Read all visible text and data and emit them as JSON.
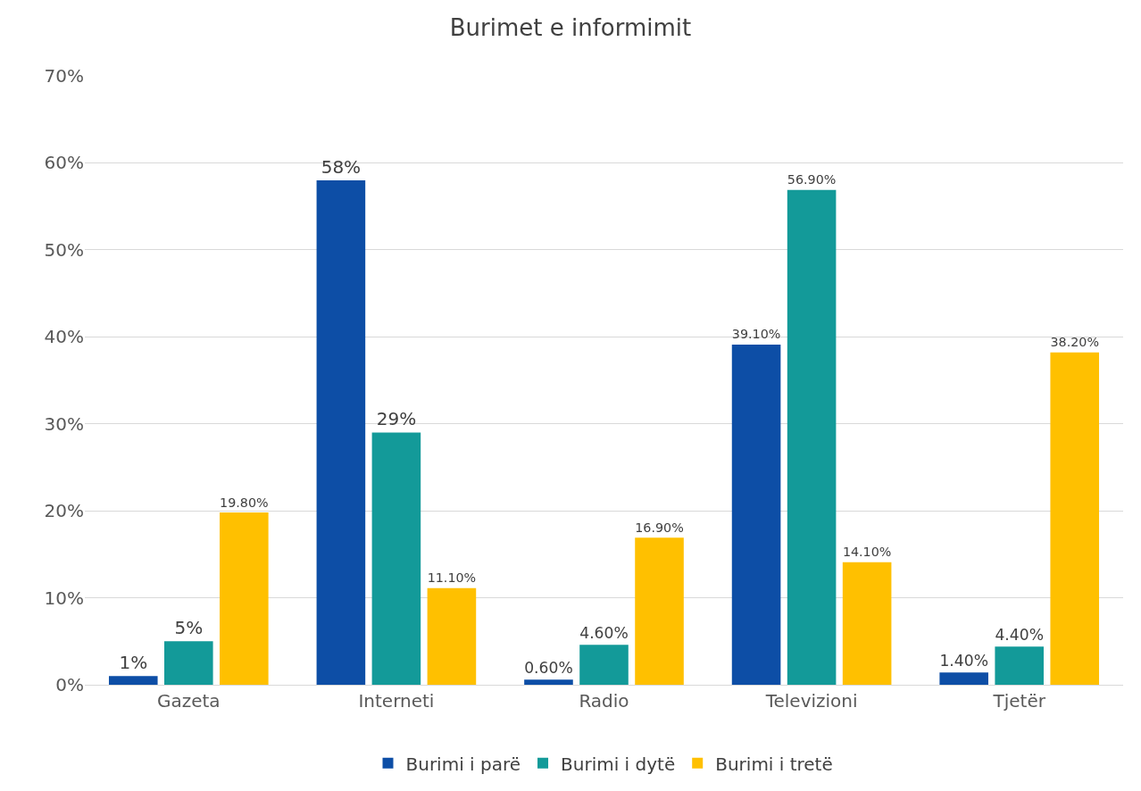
{
  "chart_data": {
    "type": "bar",
    "title": "Burimet e informimit",
    "categories": [
      "Gazeta",
      "Interneti",
      "Radio",
      "Televizioni",
      "Tjetër"
    ],
    "series": [
      {
        "name": "Burimi i parë",
        "color": "#0d4ea6",
        "values": [
          1,
          58,
          0.6,
          39.1,
          1.4
        ],
        "value_labels": [
          "1%",
          "58%",
          "0.60%",
          "39.10%",
          "1.40%"
        ]
      },
      {
        "name": "Burimi i dytë",
        "color": "#139a99",
        "values": [
          5,
          29,
          4.6,
          56.9,
          4.4
        ],
        "value_labels": [
          "5%",
          "29%",
          "4.60%",
          "56.90%",
          "4.40%"
        ]
      },
      {
        "name": "Burimi i tretë",
        "color": "#ffc000",
        "values": [
          19.8,
          11.1,
          16.9,
          14.1,
          38.2
        ],
        "value_labels": [
          "19.80%",
          "11.10%",
          "16.90%",
          "14.10%",
          "38.20%"
        ]
      }
    ],
    "ylim": [
      0,
      70
    ],
    "yticks": [
      {
        "value": 0,
        "label": "0%"
      },
      {
        "value": 10,
        "label": "10%"
      },
      {
        "value": 20,
        "label": "20%"
      },
      {
        "value": 30,
        "label": "30%"
      },
      {
        "value": 40,
        "label": "40%"
      },
      {
        "value": 50,
        "label": "50%"
      },
      {
        "value": 60,
        "label": "60%"
      },
      {
        "value": 70,
        "label": "70%"
      }
    ],
    "grid": "y",
    "legend": "bottom"
  }
}
